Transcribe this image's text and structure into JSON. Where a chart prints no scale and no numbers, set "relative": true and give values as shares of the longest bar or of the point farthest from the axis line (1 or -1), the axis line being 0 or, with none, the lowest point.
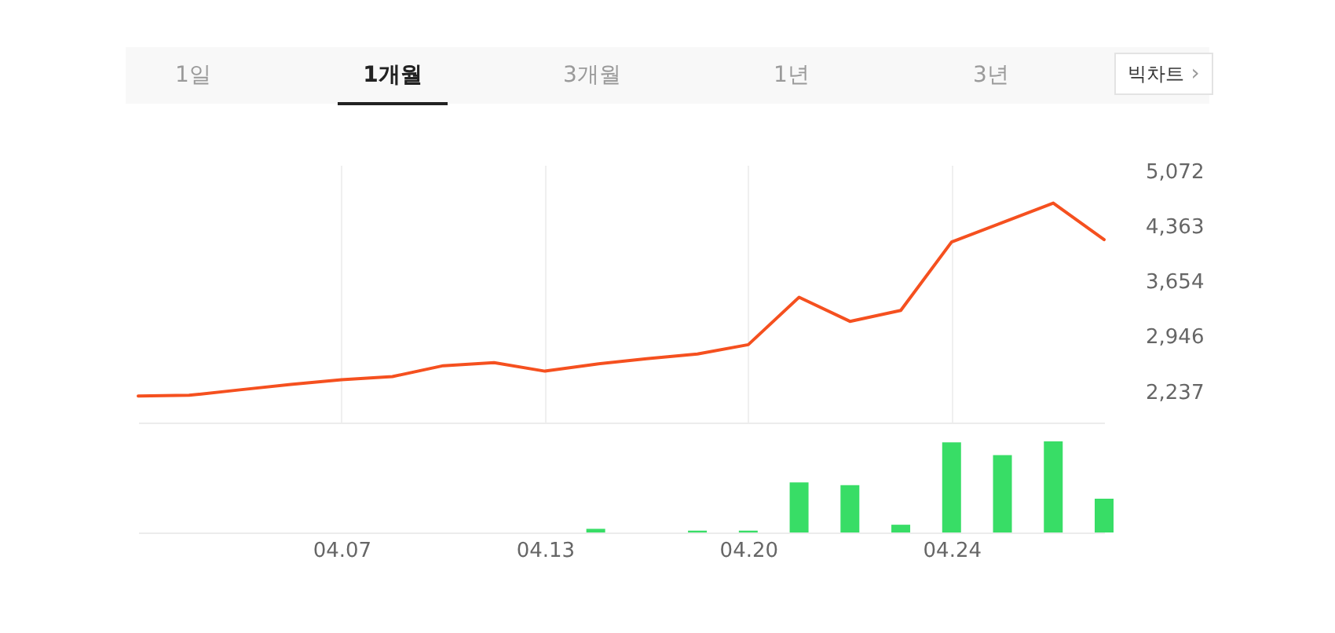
{
  "chart_data": [
    {
      "type": "other",
      "annotations": [
        "1일",
        "1개월",
        "3개월",
        "1년",
        "3년",
        "빅차트",
        "›"
      ]
    },
    {
      "type": "line",
      "categories": [
        null,
        null,
        null,
        null,
        "04.07",
        null,
        null,
        null,
        "04.13",
        null,
        null,
        null,
        "04.20",
        null,
        null,
        null,
        "04.24",
        null,
        null,
        null
      ],
      "series": [
        {
          "color": "#f5501f",
          "values": [
            2180,
            2190,
            2260,
            2330,
            2390,
            2430,
            2570,
            2610,
            2500,
            2590,
            2660,
            2720,
            2840,
            3450,
            3140,
            3280,
            4160,
            4410,
            4660,
            4190
          ]
        }
      ],
      "ylim": [
        1840,
        5150
      ],
      "yticks": [
        {
          "value": 2237,
          "label": "2,237"
        },
        {
          "value": 2946,
          "label": "2,946"
        },
        {
          "value": 3654,
          "label": "3,654"
        },
        {
          "value": 4363,
          "label": "4,363"
        },
        {
          "value": 5072,
          "label": "5,072"
        }
      ],
      "grid": "x",
      "tick_labels": "y"
    },
    {
      "type": "bar",
      "categories": [
        null,
        null,
        null,
        null,
        "04.07",
        null,
        null,
        null,
        "04.13",
        null,
        null,
        null,
        "04.20",
        null,
        null,
        null,
        "04.24",
        null,
        null,
        null
      ],
      "values": [
        null,
        null,
        null,
        null,
        null,
        null,
        null,
        null,
        null,
        0.04,
        null,
        0.02,
        0.02,
        0.55,
        0.52,
        0.085,
        0.99,
        0.85,
        1,
        0.37
      ],
      "color": "#38dd66",
      "relative": true
    }
  ]
}
